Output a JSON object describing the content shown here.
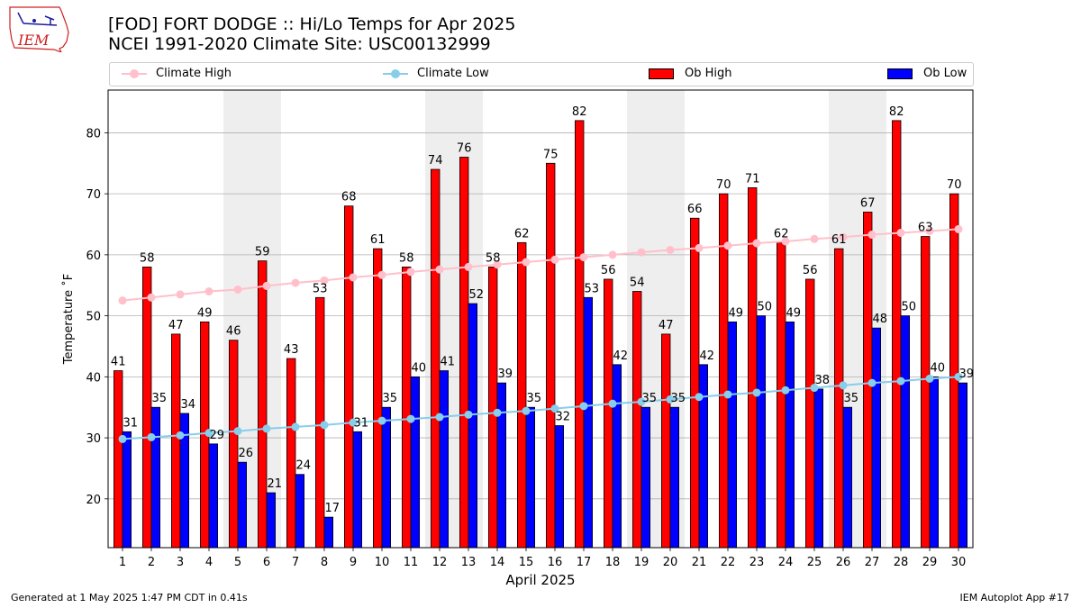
{
  "header": {
    "logo_text": "IEM",
    "title_line1": "[FOD] FORT DODGE :: Hi/Lo Temps for Apr 2025",
    "title_line2": "NCEI 1991-2020 Climate Site: USC00132999"
  },
  "footer": {
    "left": "Generated at 1 May 2025 1:47 PM CDT in 0.41s",
    "right": "IEM Autoplot App #17"
  },
  "colors": {
    "ob_high": "#ff0000",
    "ob_low": "#0000ff",
    "climate_high": "#ffc0cb",
    "climate_low": "#87ceeb",
    "weekend_shade": "#eeeeee",
    "grid": "#b0b0b0"
  },
  "chart_data": {
    "type": "bar",
    "xlabel": "April 2025",
    "ylabel": "Temperature ˚F",
    "ylim": [
      12,
      87
    ],
    "yticks": [
      20,
      30,
      40,
      50,
      60,
      70,
      80
    ],
    "grid": "horizontal",
    "legend_position": "top",
    "shaded_days": [
      5,
      6,
      12,
      13,
      19,
      20,
      26,
      27
    ],
    "categories": [
      1,
      2,
      3,
      4,
      5,
      6,
      7,
      8,
      9,
      10,
      11,
      12,
      13,
      14,
      15,
      16,
      17,
      18,
      19,
      20,
      21,
      22,
      23,
      24,
      25,
      26,
      27,
      28,
      29,
      30
    ],
    "series": [
      {
        "name": "Climate High",
        "kind": "line",
        "values": [
          52.5,
          53.0,
          53.5,
          54.0,
          54.3,
          54.9,
          55.4,
          55.8,
          56.3,
          56.7,
          57.2,
          57.6,
          58.0,
          58.4,
          58.8,
          59.2,
          59.6,
          60.0,
          60.4,
          60.8,
          61.1,
          61.5,
          61.9,
          62.2,
          62.6,
          62.9,
          63.3,
          63.6,
          63.9,
          64.2
        ]
      },
      {
        "name": "Climate Low",
        "kind": "line",
        "values": [
          29.8,
          30.1,
          30.4,
          30.8,
          31.1,
          31.5,
          31.8,
          32.1,
          32.5,
          32.8,
          33.1,
          33.4,
          33.8,
          34.1,
          34.4,
          34.8,
          35.2,
          35.6,
          35.9,
          36.3,
          36.7,
          37.1,
          37.4,
          37.8,
          38.2,
          38.6,
          39.0,
          39.3,
          39.7,
          40.0
        ]
      },
      {
        "name": "Ob High",
        "kind": "bar",
        "values": [
          41,
          58,
          47,
          49,
          46,
          59,
          43,
          53,
          68,
          61,
          58,
          74,
          76,
          58,
          62,
          75,
          82,
          56,
          54,
          47,
          66,
          70,
          71,
          62,
          56,
          61,
          67,
          82,
          63,
          70
        ]
      },
      {
        "name": "Ob Low",
        "kind": "bar",
        "values": [
          31,
          35,
          34,
          29,
          26,
          21,
          24,
          17,
          31,
          35,
          40,
          41,
          52,
          39,
          35,
          32,
          53,
          42,
          35,
          35,
          42,
          49,
          50,
          49,
          38,
          35,
          48,
          50,
          40,
          39
        ]
      }
    ]
  }
}
